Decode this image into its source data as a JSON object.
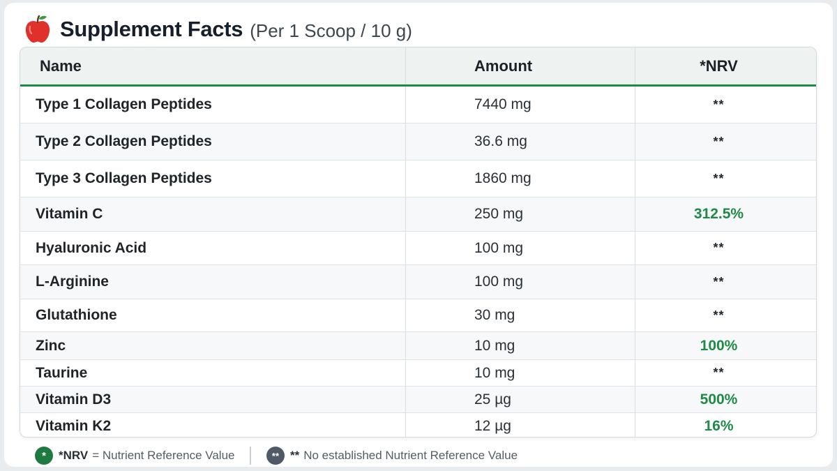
{
  "header": {
    "title": "Supplement Facts",
    "subtitle": "(Per 1 Scoop / 10 g)",
    "icon": "apple-icon"
  },
  "table": {
    "columns": [
      "Name",
      "Amount",
      "*NRV"
    ],
    "rows": [
      {
        "name": "Type 1 Collagen Peptides",
        "amount": "7440 mg",
        "nrv": "**"
      },
      {
        "name": "Type 2 Collagen Peptides",
        "amount": "36.6 mg",
        "nrv": "**"
      },
      {
        "name": "Type 3 Collagen Peptides",
        "amount": "1860 mg",
        "nrv": "**"
      },
      {
        "name": "Vitamin C",
        "amount": "250 mg",
        "nrv": "312.5%"
      },
      {
        "name": "Hyaluronic Acid",
        "amount": "100 mg",
        "nrv": "**"
      },
      {
        "name": "L-Arginine",
        "amount": "100 mg",
        "nrv": "**"
      },
      {
        "name": "Glutathione",
        "amount": "30 mg",
        "nrv": "**"
      },
      {
        "name": "Zinc",
        "amount": "10 mg",
        "nrv": "100%"
      },
      {
        "name": "Taurine",
        "amount": "10 mg",
        "nrv": "**"
      },
      {
        "name": "Vitamin D3",
        "amount": "25 µg",
        "nrv": "500%"
      },
      {
        "name": "Vitamin K2",
        "amount": "12 µg",
        "nrv": "16%"
      }
    ]
  },
  "footer": {
    "legend_1_badge": "*",
    "legend_1_key": "*NRV",
    "legend_1_text": "= Nutrient Reference Value",
    "legend_2_badge": "**",
    "legend_2_key": "**",
    "legend_2_text": "No established Nutrient Reference Value"
  },
  "colors": {
    "accent_green": "#1f8a45",
    "badge_gray": "#4f5a66",
    "apple_red": "#e0302b"
  }
}
